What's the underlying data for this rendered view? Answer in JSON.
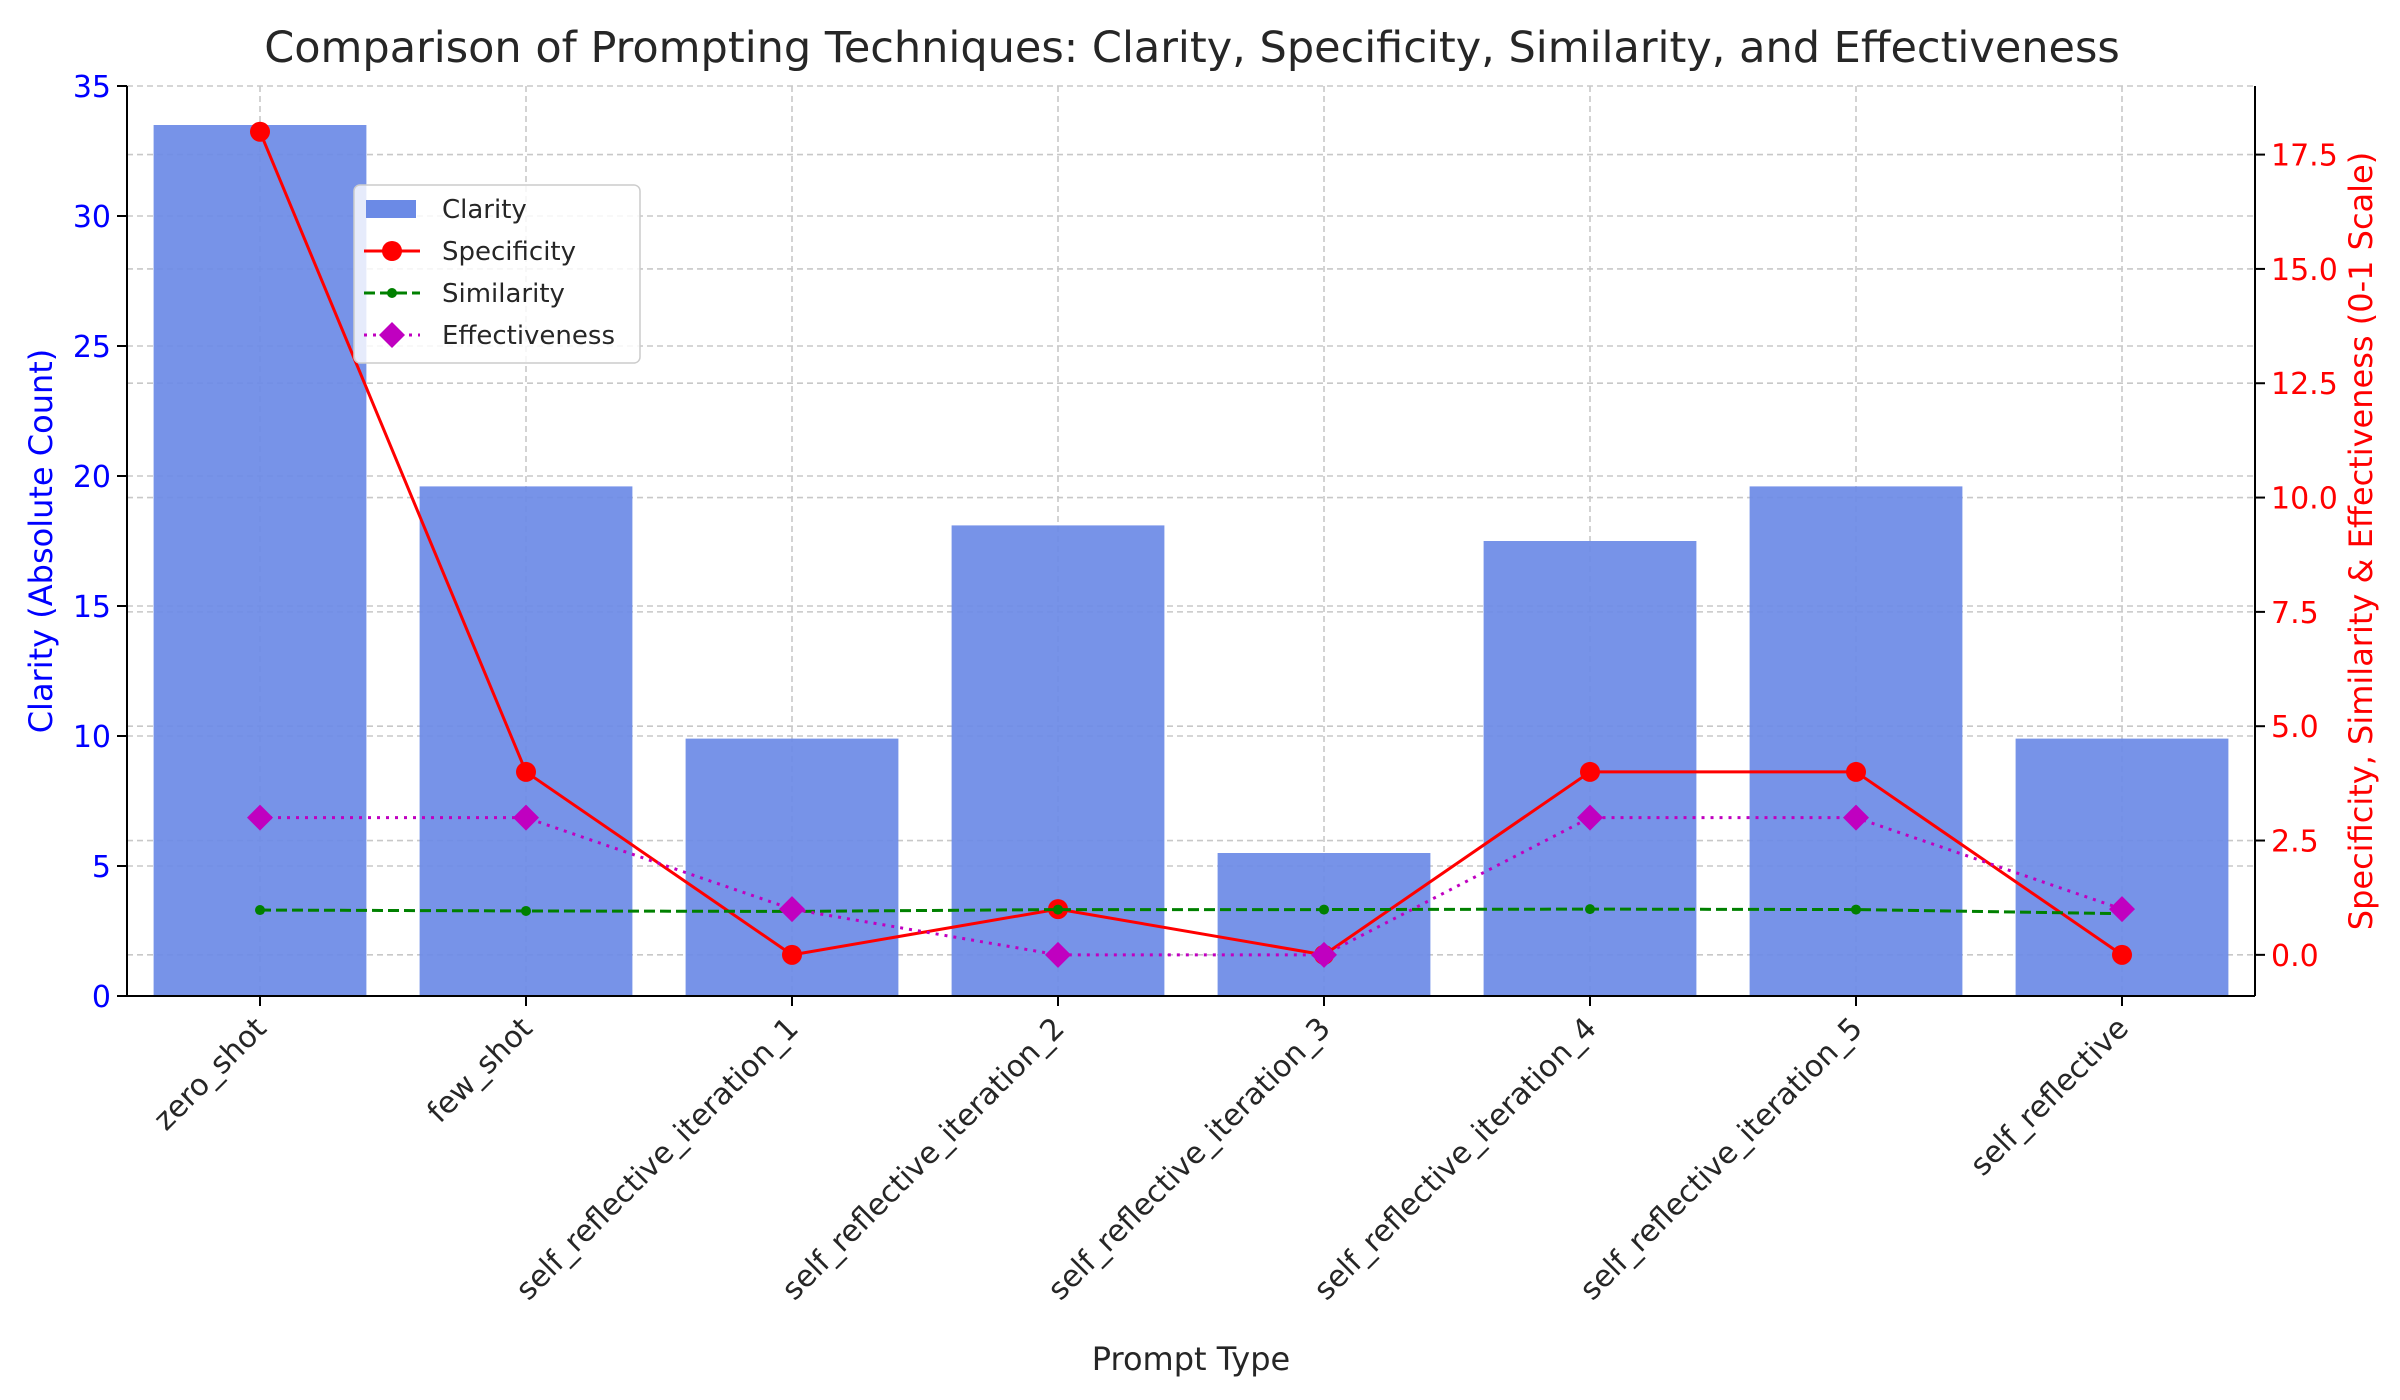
{
  "chart_data": {
    "type": "bar",
    "title": "Comparison of Prompting Techniques: Clarity, Specificity, Similarity, and Effectiveness",
    "xlabel": "Prompt Type",
    "ylabel_left": "Clarity (Absolute Count)",
    "ylabel_right": "Specificity, Similarity & Effectiveness (0-1 Scale)",
    "categories": [
      "zero_shot",
      "few_shot",
      "self_reflective_iteration_1",
      "self_reflective_iteration_2",
      "self_reflective_iteration_3",
      "self_reflective_iteration_4",
      "self_reflective_iteration_5",
      "self_reflective"
    ],
    "ylim_left": [
      0,
      35
    ],
    "yticks_left": [
      0,
      5,
      10,
      15,
      20,
      25,
      30,
      35
    ],
    "ylim_right": [
      -0.9,
      19.0
    ],
    "yticks_right": [
      "0.0",
      "2.5",
      "5.0",
      "7.5",
      "10.0",
      "12.5",
      "15.0",
      "17.5"
    ],
    "grid": true,
    "legend_position": "upper-left",
    "series": [
      {
        "name": "Clarity",
        "type": "bar",
        "axis": "left",
        "color": "#6b8ae6",
        "values": [
          33.5,
          19.6,
          9.9,
          18.1,
          5.5,
          17.5,
          19.6,
          9.9
        ]
      },
      {
        "name": "Specificity",
        "type": "line",
        "axis": "right",
        "color": "#ff0000",
        "style": "solid",
        "marker": "circle",
        "values": [
          18,
          4,
          0,
          1,
          0,
          4,
          4,
          0
        ]
      },
      {
        "name": "Similarity",
        "type": "line",
        "axis": "right",
        "color": "#008000",
        "style": "dashed",
        "marker": "small-dot",
        "values": [
          0.98,
          0.96,
          0.95,
          0.99,
          0.99,
          1.0,
          0.99,
          0.9
        ]
      },
      {
        "name": "Effectiveness",
        "type": "line",
        "axis": "right",
        "color": "#c000c0",
        "style": "dotted",
        "marker": "diamond",
        "values": [
          3,
          3,
          1,
          0,
          0,
          3,
          3,
          1
        ]
      }
    ]
  }
}
